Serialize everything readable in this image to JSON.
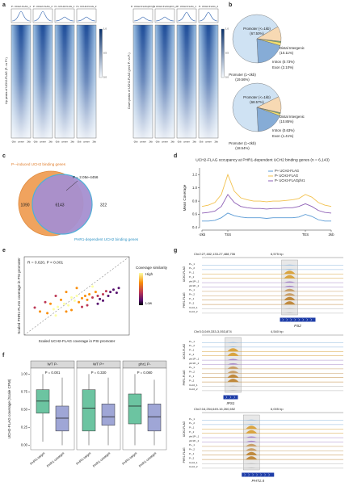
{
  "panel_labels": [
    "a",
    "b",
    "c",
    "d",
    "e",
    "f",
    "g"
  ],
  "heatmaps": {
    "left": {
      "columns": [
        "P- UCH2-FLAG_1",
        "P- UCH2-FLAG_2",
        "P+ UCH2-FLAG_1",
        "P+ UCH2-FLAG_2"
      ],
      "ylabel": "Up peaks of UCH2-FLAG (P- vs P+)"
    },
    "right": {
      "columns": [
        "P- UCH2-FLAGphr1_1",
        "P- UCH2-FLAGphr1_2",
        "P- UCH2-FLAG_1",
        "P- UCH2-FLAG_2"
      ],
      "ylabel": "Down peaks of UCH2-FLAG (phr1 P- vs P-)"
    },
    "x_labels": [
      "-2kb",
      "center",
      "2kb"
    ],
    "colorbar_ticks": [
      "0.0",
      "0.5",
      "1.0"
    ]
  },
  "venn": {
    "set_a": "P−-induced UCH2 binding genes",
    "set_b": "PHR1-dependent UCH2 binding genes",
    "only_a": 1090,
    "both": 6143,
    "only_b": 322,
    "p_label": "P = 2.05e-4456"
  },
  "track_groups": [
    {
      "name": "UCH2-FLAG",
      "rows": [
        "P+_1",
        "P+_2",
        "P-_1",
        "P-_2",
        "phr1P-_1",
        "phr1P-_2"
      ]
    },
    {
      "name": "PHR1-FLAG",
      "rows": [
        "P+_1",
        "P+_2",
        "P-_1",
        "P-_2",
        "Col-0_1",
        "Col-0_2"
      ]
    }
  ],
  "tracks": [
    {
      "locus": "Chr2:27,482,133-27,488,706",
      "span": "6,575 bp",
      "gene": "PS2"
    },
    {
      "locus": "Chr3:3,049,333-3,053,874",
      "span": "4,540 bp",
      "gene": "IPS1"
    },
    {
      "locus": "Chr2:16,254,649-16,260,652",
      "span": "6,005 bp",
      "gene": "PHT1;4"
    }
  ],
  "chart_data": [
    {
      "type": "pie",
      "categories": [
        "Promoter (<=1kb)",
        "Distal Intergenic",
        "Intron",
        "Exon",
        "Promoter (1~2kb)"
      ],
      "values": [
        67.5,
        10.11,
        0.73,
        2.1,
        19.56
      ],
      "value_labels": [
        "(67.50%)",
        "(10.11%)",
        "(0.73%)",
        "(2.10%)",
        "(19.56%)"
      ],
      "colors": [
        "#cfe2f3",
        "#f7d9b3",
        "#7fbf7b",
        "#f2df6f",
        "#86acd6"
      ]
    },
    {
      "type": "pie",
      "categories": [
        "Promoter (<=1kb)",
        "Distal Intergenic",
        "Intron",
        "Exon",
        "Promoter (1~2kb)"
      ],
      "values": [
        68.57,
        10.85,
        0.63,
        1.41,
        18.54
      ],
      "value_labels": [
        "(68.57%)",
        "(10.85%)",
        "(0.63%)",
        "(1.41%)",
        "(18.54%)"
      ],
      "colors": [
        "#cfe2f3",
        "#f7d9b3",
        "#7fbf7b",
        "#f2df6f",
        "#86acd6"
      ]
    },
    {
      "type": "line",
      "title": "UCH2-FLAG occupancy at PHR1-dependent UCH2 binding genes (n = 6,143)",
      "ylabel": "Mean Coverage",
      "x": [
        0,
        5,
        10,
        15,
        20,
        25,
        30,
        35,
        40,
        45,
        50,
        55,
        60,
        65,
        70,
        75,
        80,
        85,
        90,
        95,
        100
      ],
      "xlim": [
        0,
        100
      ],
      "xticks": [
        {
          "value": 0,
          "label": "-2kb"
        },
        {
          "value": 20,
          "label": "TSS"
        },
        {
          "value": 80,
          "label": "TES"
        },
        {
          "value": 100,
          "label": "2kb"
        }
      ],
      "ylim": [
        0.4,
        1.3
      ],
      "yticks": [
        0.4,
        0.6,
        0.8,
        {
          "value": 1,
          "label": "1.0"
        },
        1.2
      ],
      "legend": "upper right",
      "series": [
        {
          "name": "P+ UCH2-FLAG",
          "color": "#5b9bd5",
          "values": [
            0.5,
            0.5,
            0.51,
            0.55,
            0.62,
            0.58,
            0.56,
            0.55,
            0.55,
            0.55,
            0.54,
            0.55,
            0.55,
            0.55,
            0.55,
            0.56,
            0.6,
            0.57,
            0.52,
            0.5,
            0.5
          ]
        },
        {
          "name": "P- UCH2-FLAG",
          "color": "#f2c14e",
          "values": [
            0.72,
            0.74,
            0.78,
            0.9,
            1.2,
            0.95,
            0.85,
            0.82,
            0.8,
            0.8,
            0.79,
            0.8,
            0.8,
            0.81,
            0.82,
            0.84,
            0.9,
            0.86,
            0.78,
            0.74,
            0.72
          ]
        },
        {
          "name": "P- UCH2-FLAGphr1",
          "color": "#8e5fb5",
          "values": [
            0.62,
            0.63,
            0.65,
            0.72,
            0.9,
            0.78,
            0.72,
            0.7,
            0.69,
            0.69,
            0.68,
            0.69,
            0.69,
            0.7,
            0.7,
            0.72,
            0.76,
            0.72,
            0.66,
            0.63,
            0.62
          ]
        }
      ]
    },
    {
      "type": "scatter",
      "annotation": "R = 0.620, P < 0.001",
      "xlabel": "Scaled UCH2-FLAG coverage in PSI promoter",
      "ylabel": "Scaled PHR1-FLAG coverage in PSI promoter",
      "colorbar_title": "Coverage similarity",
      "colorbar_high": "High",
      "colorbar_low": "Low",
      "xlim": [
        0,
        1
      ],
      "ylim": [
        0,
        1
      ],
      "x": [
        0.1,
        0.15,
        0.2,
        0.22,
        0.25,
        0.28,
        0.3,
        0.32,
        0.35,
        0.38,
        0.4,
        0.42,
        0.45,
        0.48,
        0.5,
        0.52,
        0.55,
        0.58,
        0.6,
        0.62,
        0.65,
        0.68,
        0.7,
        0.72,
        0.75,
        0.78,
        0.8,
        0.82,
        0.85,
        0.88,
        0.9,
        0.3,
        0.45,
        0.6,
        0.7,
        0.55,
        0.65,
        0.75,
        0.4,
        0.5
      ],
      "y": [
        0.35,
        0.3,
        0.42,
        0.28,
        0.4,
        0.33,
        0.5,
        0.36,
        0.45,
        0.4,
        0.55,
        0.38,
        0.48,
        0.44,
        0.5,
        0.42,
        0.47,
        0.5,
        0.45,
        0.52,
        0.48,
        0.55,
        0.5,
        0.46,
        0.52,
        0.56,
        0.5,
        0.55,
        0.58,
        0.54,
        0.6,
        0.25,
        0.32,
        0.38,
        0.4,
        0.36,
        0.62,
        0.44,
        0.3,
        0.6
      ]
    },
    {
      "type": "box",
      "ylabel": "UCH2-FLAG coverage (Scale CPM)",
      "categories": [
        "PHR1-target",
        "PHR1-untarget"
      ],
      "colors": [
        "#6cc4a1",
        "#9fa6d6"
      ],
      "ylim": [
        -0.04,
        1.06
      ],
      "yticks": [
        {
          "value": 0,
          "label": "0.00"
        },
        {
          "value": 0.25,
          "label": "0.25"
        },
        {
          "value": 0.5,
          "label": "0.50"
        },
        {
          "value": 0.75,
          "label": "0.75"
        },
        {
          "value": 1,
          "label": "1.00"
        }
      ],
      "facets": [
        {
          "title": "WT P-",
          "p_label": "P = 0.001",
          "boxes": [
            [
              0.05,
              0.45,
              0.62,
              0.78,
              1.0
            ],
            [
              0,
              0.2,
              0.38,
              0.55,
              0.95
            ]
          ]
        },
        {
          "title": "WT P+",
          "p_label": "P = 0.330",
          "boxes": [
            [
              0,
              0.2,
              0.52,
              0.78,
              1.0
            ],
            [
              0,
              0.28,
              0.4,
              0.58,
              0.95
            ]
          ]
        },
        {
          "title": "phr1 P-",
          "p_label": "P = 0.080",
          "boxes": [
            [
              0,
              0.3,
              0.55,
              0.72,
              1.0
            ],
            [
              0,
              0.2,
              0.4,
              0.58,
              0.92
            ]
          ]
        }
      ]
    }
  ]
}
